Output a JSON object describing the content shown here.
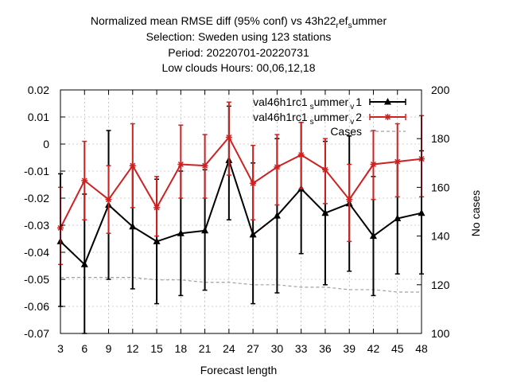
{
  "chart_data": {
    "type": "line",
    "title_lines": [
      "Normalized mean RMSE diff (95% conf) vs 43h22_ref_summer",
      "Selection: Sweden using   123 stations",
      "Period: 20220701-20220731",
      "Low clouds   Hours: 00,06,12,18"
    ],
    "xlabel": "Forecast length",
    "ylabel": "",
    "y2label": "No cases",
    "x": [
      3,
      6,
      9,
      12,
      15,
      18,
      21,
      24,
      27,
      30,
      33,
      36,
      39,
      42,
      45,
      48
    ],
    "xlim": [
      3,
      48
    ],
    "ylim": [
      -0.07,
      0.02
    ],
    "y2lim": [
      100,
      200
    ],
    "y_ticks": [
      0.02,
      0.01,
      0,
      -0.01,
      -0.02,
      -0.03,
      -0.04,
      -0.05,
      -0.06,
      -0.07
    ],
    "y_tick_labels": [
      "0.02",
      "0.01",
      "0",
      "-0.01",
      "-0.02",
      "-0.03",
      "-0.04",
      "-0.05",
      "-0.06",
      "-0.07"
    ],
    "y2_ticks": [
      100,
      120,
      140,
      160,
      180,
      200
    ],
    "y2_tick_labels": [
      "100",
      "120",
      "140",
      "160",
      "180",
      "200"
    ],
    "x_tick_labels": [
      "3",
      "6",
      "9",
      "12",
      "15",
      "18",
      "21",
      "24",
      "27",
      "30",
      "33",
      "36",
      "39",
      "42",
      "45",
      "48"
    ],
    "grid": true,
    "legend_position": "top-right",
    "series": [
      {
        "name": "val46h1rc1_summer_v1",
        "legend_parts": [
          "val46h1rc1",
          "s",
          "ummer",
          "v",
          "1"
        ],
        "color": "#000000",
        "marker": "triangle",
        "values": [
          -0.036,
          -0.0445,
          -0.0225,
          -0.0305,
          -0.036,
          -0.033,
          -0.032,
          -0.006,
          -0.0335,
          -0.0265,
          -0.0165,
          -0.0255,
          -0.022,
          -0.034,
          -0.0275,
          -0.0255
        ],
        "err_low": [
          -0.06,
          -0.07,
          -0.05,
          -0.0535,
          -0.059,
          -0.056,
          -0.054,
          -0.028,
          -0.059,
          -0.055,
          -0.0405,
          -0.052,
          -0.047,
          -0.056,
          -0.048,
          -0.048
        ],
        "err_high": [
          -0.011,
          -0.0185,
          0.005,
          -0.008,
          -0.013,
          -0.01,
          -0.0095,
          0.014,
          -0.007,
          0.002,
          0.008,
          0.001,
          0.003,
          -0.012,
          -0.0065,
          -0.0025
        ]
      },
      {
        "name": "val46h1rc1_summer_v2",
        "legend_parts": [
          "val46h1rc1",
          "s",
          "ummer",
          "v",
          "2"
        ],
        "color": "#cc2222",
        "marker": "star",
        "values": [
          -0.031,
          -0.0135,
          -0.0205,
          -0.008,
          -0.0235,
          -0.0075,
          -0.008,
          0.0025,
          -0.0145,
          -0.0085,
          -0.004,
          -0.0095,
          -0.0205,
          -0.0075,
          -0.0065,
          -0.0055
        ],
        "err_low": [
          -0.0445,
          -0.028,
          -0.033,
          -0.0235,
          -0.034,
          -0.02,
          -0.02,
          -0.0115,
          -0.028,
          -0.0225,
          -0.0165,
          -0.022,
          -0.036,
          -0.0205,
          -0.0195,
          -0.0195
        ],
        "err_high": [
          -0.016,
          0.001,
          -0.008,
          0.0075,
          -0.012,
          0.007,
          0.0035,
          0.0155,
          -0.0005,
          0.0035,
          0.008,
          0.002,
          -0.0075,
          0.005,
          0.0075,
          0.0105
        ]
      },
      {
        "name": "Cases",
        "axis": "y2",
        "color": "#a0a0a0",
        "style": "dashed",
        "values": [
          123,
          123,
          123,
          123,
          122,
          122,
          121,
          121,
          120,
          120,
          119,
          119,
          118,
          118,
          117,
          117
        ]
      }
    ]
  }
}
